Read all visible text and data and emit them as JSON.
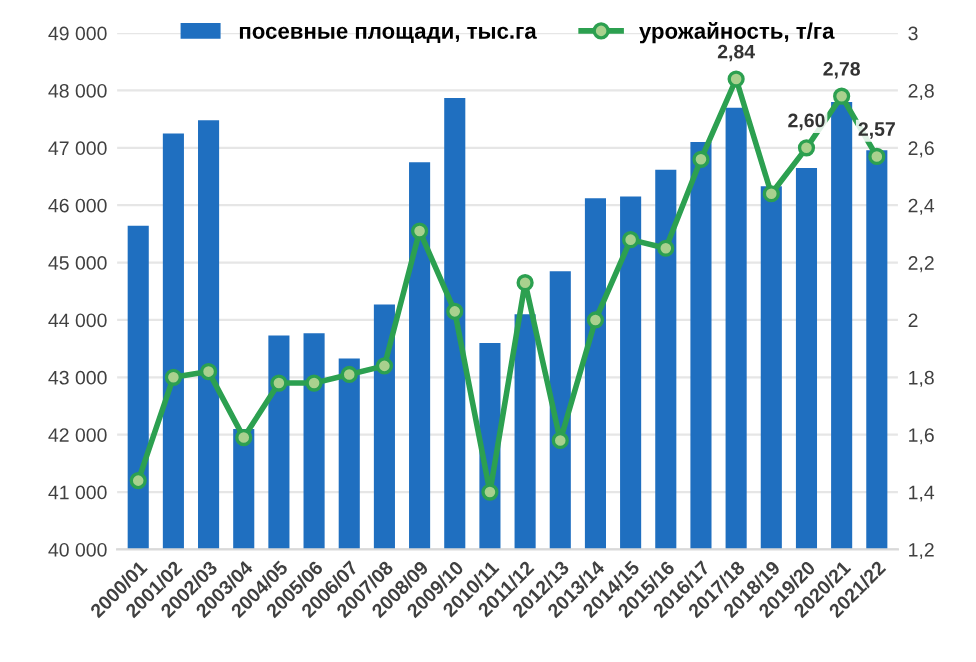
{
  "chart_data": {
    "type": "bar",
    "categories": [
      "2000/01",
      "2001/02",
      "2002/03",
      "2003/04",
      "2004/05",
      "2005/06",
      "2006/07",
      "2007/08",
      "2008/09",
      "2009/10",
      "2010/11",
      "2011/12",
      "2012/13",
      "2013/14",
      "2014/15",
      "2015/16",
      "2016/17",
      "2017/18",
      "2018/19",
      "2019/20",
      "2020/21",
      "2021/22"
    ],
    "series": [
      {
        "name": "посевные площади, тыс.га",
        "color": "#1f6fc0",
        "values": [
          45640,
          47250,
          47480,
          42100,
          43730,
          43770,
          43330,
          44270,
          46750,
          47870,
          43600,
          44100,
          44850,
          46120,
          46150,
          46620,
          47100,
          47700,
          46330,
          46650,
          47800,
          46960
        ]
      },
      {
        "name": "урожайность, т/га",
        "type": "line",
        "axis": "y2",
        "color": "#2ca050",
        "marker": "circle",
        "values": [
          1.44,
          1.8,
          1.82,
          1.59,
          1.78,
          1.78,
          1.81,
          1.84,
          2.31,
          2.03,
          1.4,
          2.13,
          1.58,
          2.0,
          2.28,
          2.25,
          2.56,
          2.84,
          2.44,
          2.6,
          2.78,
          2.57
        ],
        "value_labels": [
          null,
          null,
          null,
          null,
          null,
          null,
          null,
          null,
          null,
          null,
          null,
          null,
          null,
          null,
          null,
          null,
          null,
          "2,84",
          null,
          "2,60",
          "2,78",
          "2,57"
        ]
      }
    ],
    "ylim": [
      40000,
      49000
    ],
    "yticks": [
      {
        "value": 40000,
        "label": "40 000"
      },
      {
        "value": 41000,
        "label": "41 000"
      },
      {
        "value": 42000,
        "label": "42 000"
      },
      {
        "value": 43000,
        "label": "43 000"
      },
      {
        "value": 44000,
        "label": "44 000"
      },
      {
        "value": 45000,
        "label": "45 000"
      },
      {
        "value": 46000,
        "label": "46 000"
      },
      {
        "value": 47000,
        "label": "47 000"
      },
      {
        "value": 48000,
        "label": "48 000"
      },
      {
        "value": 49000,
        "label": "49 000"
      }
    ],
    "y2lim": [
      1.2,
      3
    ],
    "y2ticks": [
      {
        "value": 1.2,
        "label": "1,2"
      },
      {
        "value": 1.4,
        "label": "1,4"
      },
      {
        "value": 1.6,
        "label": "1,6"
      },
      {
        "value": 1.8,
        "label": "1,8"
      },
      {
        "value": 2,
        "label": "2"
      },
      {
        "value": 2.2,
        "label": "2,2"
      },
      {
        "value": 2.4,
        "label": "2,4"
      },
      {
        "value": 2.6,
        "label": "2,6"
      },
      {
        "value": 2.8,
        "label": "2,8"
      },
      {
        "value": 3,
        "label": "3"
      }
    ],
    "grid": "y",
    "legend": "top"
  }
}
